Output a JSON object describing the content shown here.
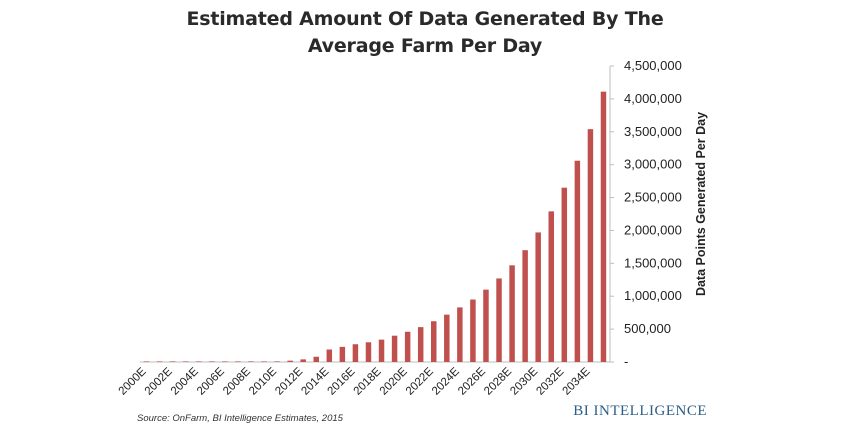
{
  "chart_data": {
    "type": "bar",
    "title_line1": "Estimated Amount Of Data Generated By The",
    "title_line2": "Average Farm Per Day",
    "ylabel": "Data Points Generated Per Day",
    "xlabel": "",
    "ylim": [
      0,
      4500000
    ],
    "y_ticks": [
      0,
      500000,
      1000000,
      1500000,
      2000000,
      2500000,
      3000000,
      3500000,
      4000000,
      4500000
    ],
    "y_tick_labels": [
      "-",
      "500,000",
      "1,000,000",
      "1,500,000",
      "2,000,000",
      "2,500,000",
      "3,000,000",
      "3,500,000",
      "4,000,000",
      "4,500,000"
    ],
    "axis_position": "right",
    "grid": false,
    "bar_color": "#c0504d",
    "categories": [
      "2000E",
      "2001E",
      "2002E",
      "2003E",
      "2004E",
      "2005E",
      "2006E",
      "2007E",
      "2008E",
      "2009E",
      "2010E",
      "2011E",
      "2012E",
      "2013E",
      "2014E",
      "2015E",
      "2016E",
      "2017E",
      "2018E",
      "2019E",
      "2020E",
      "2021E",
      "2022E",
      "2023E",
      "2024E",
      "2025E",
      "2026E",
      "2027E",
      "2028E",
      "2029E",
      "2030E",
      "2031E",
      "2032E",
      "2033E",
      "2034E",
      "2035E"
    ],
    "x_tick_labels": [
      "2000E",
      "",
      "2002E",
      "",
      "2004E",
      "",
      "2006E",
      "",
      "2008E",
      "",
      "2010E",
      "",
      "2012E",
      "",
      "2014E",
      "",
      "2016E",
      "",
      "2018E",
      "",
      "2020E",
      "",
      "2022E",
      "",
      "2024E",
      "",
      "2026E",
      "",
      "2028E",
      "",
      "2030E",
      "",
      "2032E",
      "",
      "2034E",
      ""
    ],
    "values": [
      190,
      380,
      570,
      760,
      950,
      1140,
      1330,
      1520,
      1710,
      1900,
      7000,
      20000,
      40000,
      80000,
      190000,
      230000,
      270000,
      300000,
      340000,
      400000,
      460000,
      530000,
      620000,
      720000,
      830000,
      950000,
      1100000,
      1270000,
      1470000,
      1700000,
      1970000,
      2290000,
      2650000,
      3060000,
      3540000,
      4110000
    ]
  },
  "source": "Source: OnFarm, BI Intelligence Estimates, 2015",
  "brand": "BI INTELLIGENCE"
}
